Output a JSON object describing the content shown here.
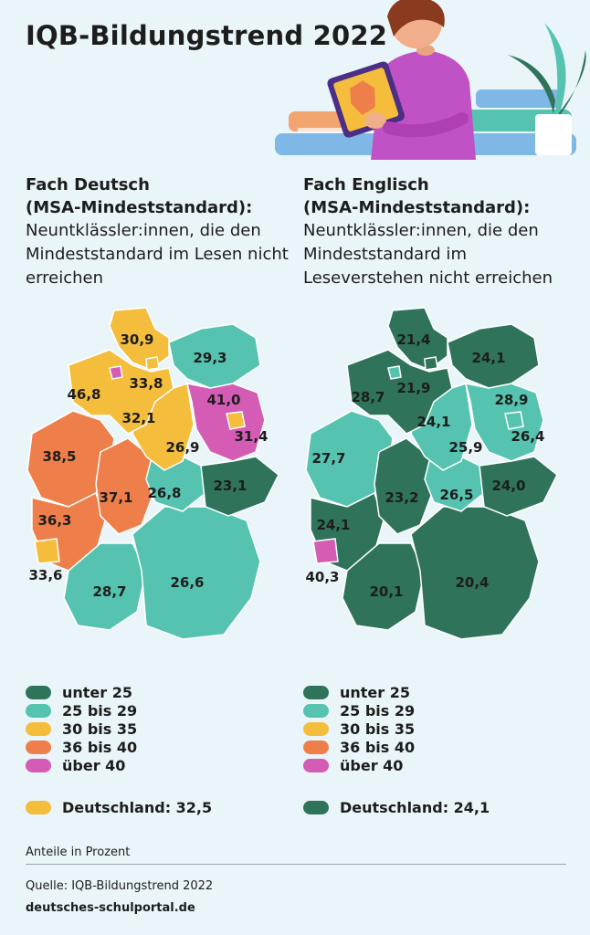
{
  "title": "IQB-Bildungstrend 2022",
  "colors": {
    "unter_25": "#2f735a",
    "25_bis_29": "#55c3b0",
    "30_bis_35": "#f5bd3c",
    "36_bis_40": "#ee7f4b",
    "ueber_40": "#d45cb5",
    "background": "#eaf5fa"
  },
  "deutsch": {
    "heading_line1": "Fach Deutsch",
    "heading_line2": "(MSA-Mindeststandard):",
    "sub": "Neuntklässler:innen, die den Mindeststandard im Lesen nicht erreichen",
    "total_label": "Deutschland: 32,5",
    "states": [
      {
        "state": "Schleswig-Holstein",
        "value": "30,9",
        "class": "30_bis_35"
      },
      {
        "state": "Mecklenburg-Vorpommern",
        "value": "29,3",
        "class": "25_bis_29"
      },
      {
        "state": "Bremen",
        "value": "46,8",
        "class": "ueber_40"
      },
      {
        "state": "Niedersachsen",
        "value": "33,8",
        "class": "30_bis_35"
      },
      {
        "state": "Brandenburg",
        "value": "41,0",
        "class": "ueber_40"
      },
      {
        "state": "Berlin",
        "value": "31,4",
        "class": "30_bis_35"
      },
      {
        "state": "Sachsen-Anhalt",
        "value": "32,1",
        "class": "30_bis_35"
      },
      {
        "state": "Nordrhein-Westfalen",
        "value": "38,5",
        "class": "36_bis_40"
      },
      {
        "state": "Thüringen",
        "value": "26,9",
        "class": "25_bis_29"
      },
      {
        "state": "Sachsen",
        "value": "23,1",
        "class": "unter_25"
      },
      {
        "state": "Hessen",
        "value": "37,1",
        "class": "36_bis_40"
      },
      {
        "state": "Thüringen-Süd",
        "value": "26,8",
        "class": "25_bis_29"
      },
      {
        "state": "Rheinland-Pfalz",
        "value": "36,3",
        "class": "36_bis_40"
      },
      {
        "state": "Saarland",
        "value": "33,6",
        "class": "30_bis_35"
      },
      {
        "state": "Baden-Württemberg",
        "value": "28,7",
        "class": "25_bis_29"
      },
      {
        "state": "Bayern",
        "value": "26,6",
        "class": "25_bis_29"
      }
    ]
  },
  "englisch": {
    "heading_line1": "Fach Englisch",
    "heading_line2": "(MSA-Mindeststandard):",
    "sub": "Neuntklässler:innen, die den Mindeststandard im Leseverstehen nicht erreichen",
    "total_label": "Deutschland: 24,1",
    "states": [
      {
        "state": "Schleswig-Holstein",
        "value": "21,4",
        "class": "unter_25"
      },
      {
        "state": "Mecklenburg-Vorpommern",
        "value": "24,1",
        "class": "unter_25"
      },
      {
        "state": "Bremen",
        "value": "28,7",
        "class": "25_bis_29"
      },
      {
        "state": "Hamburg",
        "value": "21,9",
        "class": "unter_25"
      },
      {
        "state": "Berlin",
        "value": "28,9",
        "class": "25_bis_29"
      },
      {
        "state": "Niedersachsen",
        "value": "24,1",
        "class": "unter_25"
      },
      {
        "state": "Brandenburg",
        "value": "26,4",
        "class": "25_bis_29"
      },
      {
        "state": "Nordrhein-Westfalen",
        "value": "27,7",
        "class": "25_bis_29"
      },
      {
        "state": "Sachsen-Anhalt",
        "value": "25,9",
        "class": "25_bis_29"
      },
      {
        "state": "Sachsen",
        "value": "24,0",
        "class": "unter_25"
      },
      {
        "state": "Hessen",
        "value": "23,2",
        "class": "unter_25"
      },
      {
        "state": "Thüringen",
        "value": "26,5",
        "class": "25_bis_29"
      },
      {
        "state": "Rheinland-Pfalz",
        "value": "24,1",
        "class": "unter_25"
      },
      {
        "state": "Saarland",
        "value": "40,3",
        "class": "ueber_40"
      },
      {
        "state": "Baden-Württemberg",
        "value": "20,1",
        "class": "unter_25"
      },
      {
        "state": "Bayern",
        "value": "20,4",
        "class": "unter_25"
      }
    ]
  },
  "legend": [
    {
      "label": "unter 25",
      "class": "unter_25"
    },
    {
      "label": "25 bis 29",
      "class": "25_bis_29"
    },
    {
      "label": "30 bis 35",
      "class": "30_bis_35"
    },
    {
      "label": "36 bis 40",
      "class": "36_bis_40"
    },
    {
      "label": "über 40",
      "class": "ueber_40"
    }
  ],
  "note": "Anteile in Prozent",
  "source": "Quelle: IQB-Bildungstrend 2022",
  "site": "deutsches-schulportal.de"
}
